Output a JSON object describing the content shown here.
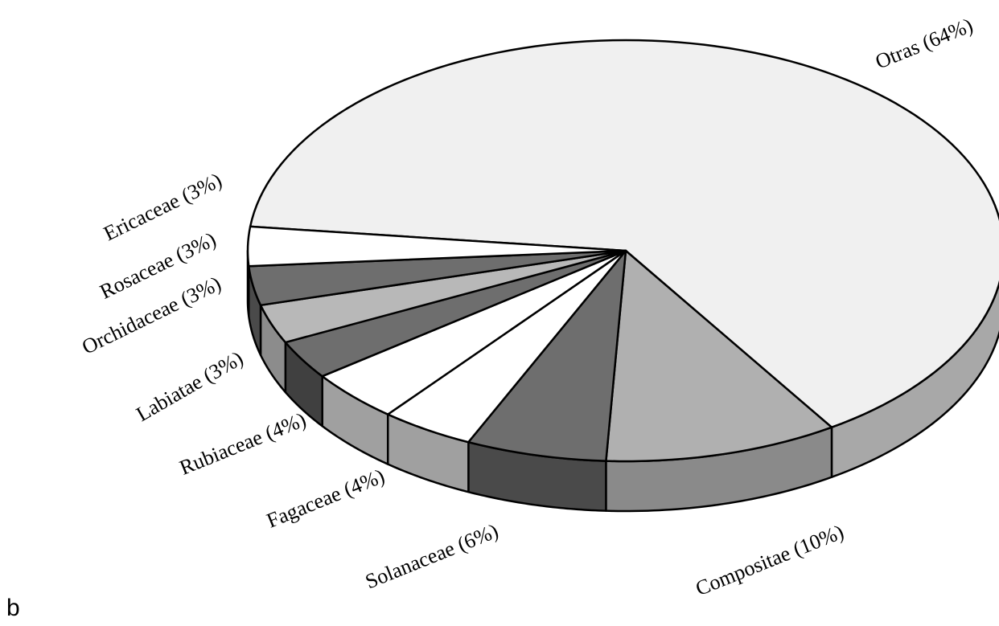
{
  "panel_letter": "b",
  "chart_data": {
    "type": "pie",
    "style": "3d-exploded-none",
    "slices": [
      {
        "label": "Otras (64%)",
        "value": 64,
        "color": "#f0f0f0",
        "side_color": "#a8a8a8"
      },
      {
        "label": "Compositae (10%)",
        "value": 10,
        "color": "#b0b0b0",
        "side_color": "#8a8a8a"
      },
      {
        "label": "Solanaceae (6%)",
        "value": 6,
        "color": "#6e6e6e",
        "side_color": "#4a4a4a"
      },
      {
        "label": "Fagaceae (4%)",
        "value": 4,
        "color": "#ffffff",
        "side_color": "#a0a0a0"
      },
      {
        "label": "Rubiaceae (4%)",
        "value": 4,
        "color": "#ffffff",
        "side_color": "#a0a0a0"
      },
      {
        "label": "Labiatae (3%)",
        "value": 3,
        "color": "#6e6e6e",
        "side_color": "#404040"
      },
      {
        "label": "Orchidaceae (3%)",
        "value": 3,
        "color": "#b8b8b8",
        "side_color": "#8c8c8c"
      },
      {
        "label": "Rosaceae (3%)",
        "value": 3,
        "color": "#6e6e6e",
        "side_color": "#4a4a4a"
      },
      {
        "label": "Ericaceae (3%)",
        "value": 3,
        "color": "#ffffff",
        "side_color": "#a0a0a0"
      }
    ]
  }
}
